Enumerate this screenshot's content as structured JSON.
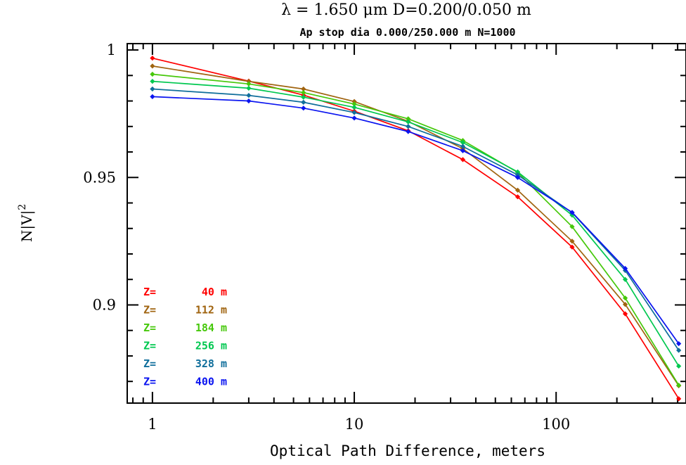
{
  "chart_data": {
    "type": "line",
    "title": "λ = 1.650 μm  D=0.200/0.050 m",
    "subtitle": "Ap stop dia 0.000/250.000 m  N=1000",
    "xlabel": "Optical Path Difference, meters",
    "ylabel_main": "N|V|",
    "ylabel_sup": "2",
    "xscale": "log",
    "xlim": [
      0.75,
      440
    ],
    "ylim": [
      0.8615,
      1.0025
    ],
    "xticks": [
      1,
      10,
      100
    ],
    "xtick_labels": [
      "1",
      "10",
      "100"
    ],
    "yticks": [
      0.9,
      0.95,
      1
    ],
    "ytick_labels": [
      "0.9",
      "0.95",
      "1"
    ],
    "x": [
      1,
      3,
      5.6,
      10,
      18.5,
      34.5,
      64.5,
      120,
      220,
      405
    ],
    "legend_prefix": "Z=",
    "legend_position": "lower-left",
    "series": [
      {
        "name": "40 m",
        "color": "#ff0000",
        "values": [
          0.9968,
          0.9878,
          0.9823,
          0.976,
          0.9683,
          0.957,
          0.9424,
          0.9227,
          0.8965,
          0.8632
        ]
      },
      {
        "name": "112 m",
        "color": "#a06410",
        "values": [
          0.9937,
          0.9877,
          0.9847,
          0.9798,
          0.972,
          0.9613,
          0.945,
          0.925,
          0.9002,
          0.8683
        ]
      },
      {
        "name": "184 m",
        "color": "#46c80a",
        "values": [
          0.9905,
          0.9867,
          0.9833,
          0.9788,
          0.973,
          0.9645,
          0.952,
          0.9307,
          0.9027,
          0.8685
        ]
      },
      {
        "name": "256 m",
        "color": "#00c850",
        "values": [
          0.9877,
          0.985,
          0.9815,
          0.9775,
          0.9718,
          0.9637,
          0.9522,
          0.9352,
          0.91,
          0.876
        ]
      },
      {
        "name": "328 m",
        "color": "#0f6e9b",
        "values": [
          0.9847,
          0.9822,
          0.9795,
          0.9755,
          0.97,
          0.9622,
          0.951,
          0.9362,
          0.9135,
          0.8822
        ]
      },
      {
        "name": "400 m",
        "color": "#0a14f0",
        "values": [
          0.9817,
          0.98,
          0.9772,
          0.9733,
          0.968,
          0.9605,
          0.95,
          0.9363,
          0.9143,
          0.8848
        ]
      }
    ]
  }
}
